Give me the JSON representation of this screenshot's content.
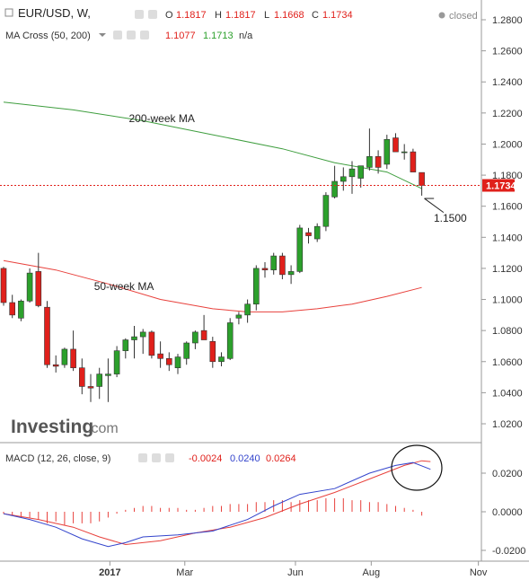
{
  "header": {
    "symbol": "EUR/USD, W,",
    "o_label": "O",
    "o_value": "1.1817",
    "h_label": "H",
    "h_value": "1.1817",
    "l_label": "L",
    "l_value": "1.1668",
    "c_label": "C",
    "c_value": "1.1734",
    "status": "closed"
  },
  "indicator_header": {
    "name": "MA Cross (50, 200)",
    "v1": "1.1077",
    "v2": "1.1713",
    "v3": "n/a"
  },
  "macd_header": {
    "name": "MACD (12, 26, close, 9)",
    "v1": "-0.0024",
    "v2": "0.0240",
    "v3": "0.0264"
  },
  "logo": {
    "main": "Investing",
    "suffix": ".com"
  },
  "colors": {
    "up": "#2ca02c",
    "down": "#e0201b",
    "ma200": "#3f9e3f",
    "ma50": "#e8413c",
    "macd_line": "#3344cc",
    "signal_line": "#e8413c",
    "hist": "#e8413c",
    "price_tag_bg": "#e0201b"
  },
  "chart_data": {
    "type": "candlestick",
    "ylim": [
      1.01,
      1.29
    ],
    "yticks": [
      "1.2800",
      "1.2600",
      "1.2400",
      "1.2200",
      "1.2000",
      "1.1800",
      "1.1600",
      "1.1400",
      "1.1200",
      "1.1000",
      "1.0800",
      "1.0600",
      "1.0400",
      "1.0200"
    ],
    "xticks": [
      "2017",
      "Mar",
      "Jun",
      "Aug",
      "Nov"
    ],
    "last_price": "1.1734",
    "candles": [
      [
        1.12,
        1.121,
        1.096,
        1.098
      ],
      [
        1.098,
        1.103,
        1.088,
        1.09
      ],
      [
        1.088,
        1.1,
        1.086,
        1.099
      ],
      [
        1.099,
        1.12,
        1.098,
        1.117
      ],
      [
        1.118,
        1.13,
        1.095,
        1.096
      ],
      [
        1.095,
        1.099,
        1.056,
        1.058
      ],
      [
        1.058,
        1.064,
        1.053,
        1.057
      ],
      [
        1.058,
        1.069,
        1.056,
        1.068
      ],
      [
        1.068,
        1.08,
        1.054,
        1.056
      ],
      [
        1.056,
        1.062,
        1.039,
        1.044
      ],
      [
        1.044,
        1.052,
        1.034,
        1.043
      ],
      [
        1.044,
        1.056,
        1.036,
        1.052
      ],
      [
        1.051,
        1.062,
        1.034,
        1.052
      ],
      [
        1.052,
        1.07,
        1.05,
        1.067
      ],
      [
        1.067,
        1.075,
        1.062,
        1.074
      ],
      [
        1.074,
        1.083,
        1.062,
        1.076
      ],
      [
        1.076,
        1.081,
        1.065,
        1.079
      ],
      [
        1.079,
        1.08,
        1.062,
        1.064
      ],
      [
        1.065,
        1.073,
        1.056,
        1.062
      ],
      [
        1.062,
        1.066,
        1.054,
        1.058
      ],
      [
        1.056,
        1.065,
        1.052,
        1.063
      ],
      [
        1.062,
        1.073,
        1.058,
        1.072
      ],
      [
        1.072,
        1.08,
        1.068,
        1.079
      ],
      [
        1.08,
        1.09,
        1.074,
        1.074
      ],
      [
        1.073,
        1.076,
        1.056,
        1.06
      ],
      [
        1.06,
        1.066,
        1.057,
        1.063
      ],
      [
        1.062,
        1.088,
        1.061,
        1.085
      ],
      [
        1.088,
        1.092,
        1.084,
        1.09
      ],
      [
        1.09,
        1.1,
        1.085,
        1.097
      ],
      [
        1.097,
        1.122,
        1.093,
        1.12
      ],
      [
        1.12,
        1.124,
        1.114,
        1.119
      ],
      [
        1.119,
        1.13,
        1.116,
        1.128
      ],
      [
        1.128,
        1.13,
        1.113,
        1.116
      ],
      [
        1.116,
        1.122,
        1.11,
        1.118
      ],
      [
        1.118,
        1.148,
        1.117,
        1.146
      ],
      [
        1.143,
        1.146,
        1.136,
        1.141
      ],
      [
        1.139,
        1.149,
        1.137,
        1.147
      ],
      [
        1.147,
        1.169,
        1.144,
        1.167
      ],
      [
        1.166,
        1.186,
        1.165,
        1.176
      ],
      [
        1.176,
        1.185,
        1.17,
        1.179
      ],
      [
        1.179,
        1.189,
        1.168,
        1.184
      ],
      [
        1.178,
        1.186,
        1.172,
        1.186
      ],
      [
        1.185,
        1.21,
        1.183,
        1.192
      ],
      [
        1.192,
        1.196,
        1.181,
        1.185
      ],
      [
        1.187,
        1.206,
        1.184,
        1.203
      ],
      [
        1.204,
        1.207,
        1.196,
        1.195
      ],
      [
        1.195,
        1.2,
        1.19,
        1.195
      ],
      [
        1.195,
        1.197,
        1.182,
        1.182
      ],
      [
        1.1817,
        1.1817,
        1.1668,
        1.1734
      ]
    ],
    "ma200": [
      [
        0,
        1.227
      ],
      [
        8,
        1.222
      ],
      [
        16,
        1.215
      ],
      [
        24,
        1.206
      ],
      [
        32,
        1.197
      ],
      [
        38,
        1.188
      ],
      [
        44,
        1.182
      ],
      [
        48,
        1.1713
      ]
    ],
    "ma50": [
      [
        0,
        1.125
      ],
      [
        6,
        1.119
      ],
      [
        12,
        1.11
      ],
      [
        18,
        1.1
      ],
      [
        24,
        1.094
      ],
      [
        28,
        1.092
      ],
      [
        32,
        1.092
      ],
      [
        36,
        1.094
      ],
      [
        40,
        1.097
      ],
      [
        44,
        1.102
      ],
      [
        48,
        1.1077
      ]
    ],
    "annotations": [
      {
        "text": "200-week MA",
        "x": 15,
        "y": 1.214
      },
      {
        "text": "50-week MA",
        "x": 11,
        "y": 1.106
      },
      {
        "text": "1.1500",
        "x": 50,
        "y": 1.15
      }
    ],
    "macd": {
      "ylim": [
        -0.03,
        0.03
      ],
      "yticks": [
        "0.0200",
        "0.0000",
        "-0.0200"
      ],
      "macd_line": [
        [
          0,
          -0.001
        ],
        [
          3,
          -0.004
        ],
        [
          6,
          -0.008
        ],
        [
          9,
          -0.014
        ],
        [
          12,
          -0.018
        ],
        [
          14,
          -0.016
        ],
        [
          16,
          -0.013
        ],
        [
          20,
          -0.012
        ],
        [
          24,
          -0.01
        ],
        [
          28,
          -0.004
        ],
        [
          31,
          0.003
        ],
        [
          34,
          0.009
        ],
        [
          38,
          0.012
        ],
        [
          42,
          0.02
        ],
        [
          45,
          0.024
        ],
        [
          47,
          0.0255
        ],
        [
          49,
          0.022
        ]
      ],
      "signal_line": [
        [
          0,
          -0.001
        ],
        [
          4,
          -0.004
        ],
        [
          8,
          -0.008
        ],
        [
          11,
          -0.013
        ],
        [
          14,
          -0.017
        ],
        [
          18,
          -0.015
        ],
        [
          22,
          -0.011
        ],
        [
          26,
          -0.008
        ],
        [
          30,
          -0.003
        ],
        [
          34,
          0.004
        ],
        [
          38,
          0.01
        ],
        [
          42,
          0.017
        ],
        [
          46,
          0.024
        ],
        [
          48,
          0.0264
        ],
        [
          49,
          0.026
        ]
      ],
      "histogram": [
        -0.001,
        -0.002,
        -0.003,
        -0.003,
        -0.004,
        -0.006,
        -0.005,
        -0.007,
        -0.006,
        -0.006,
        -0.006,
        -0.005,
        -0.003,
        -0.001,
        0.001,
        0.002,
        0.003,
        0.003,
        0.002,
        0.002,
        0.002,
        0.001,
        0.001,
        0.002,
        0.003,
        0.003,
        0.004,
        0.004,
        0.004,
        0.005,
        0.005,
        0.006,
        0.006,
        0.005,
        0.006,
        0.006,
        0.006,
        0.007,
        0.007,
        0.007,
        0.006,
        0.006,
        0.005,
        0.005,
        0.004,
        0.003,
        0.002,
        0.001,
        -0.002
      ]
    }
  }
}
